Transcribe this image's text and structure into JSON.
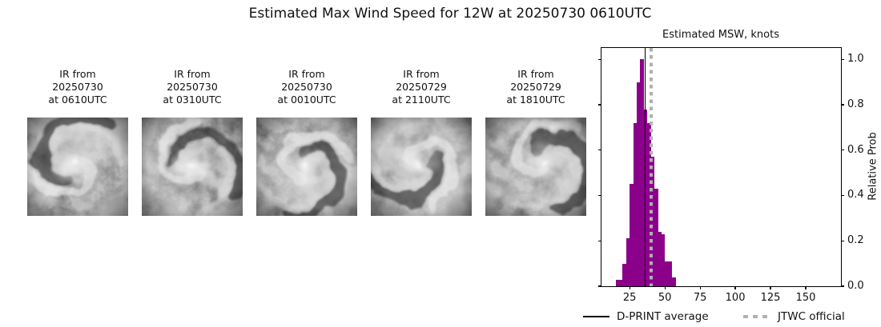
{
  "title": "Estimated Max Wind Speed for 12W at 20250730 0610UTC",
  "panels": [
    {
      "line1": "IR from",
      "line2": "20250730",
      "line3": "at 0610UTC"
    },
    {
      "line1": "IR from",
      "line2": "20250730",
      "line3": "at 0310UTC"
    },
    {
      "line1": "IR from",
      "line2": "20250730",
      "line3": "at 0010UTC"
    },
    {
      "line1": "IR from",
      "line2": "20250729",
      "line3": "at 2110UTC"
    },
    {
      "line1": "IR from",
      "line2": "20250729",
      "line3": "at 1810UTC"
    }
  ],
  "histogram": {
    "title": "Estimated MSW, knots",
    "ylabel": "Relative Prob",
    "bar_color": "#8b008b",
    "average_line_color": "#000000",
    "official_line_color": "#b0b0b0",
    "legend": [
      {
        "label": "D-PRINT average",
        "style": "solid-black-line"
      },
      {
        "label": "JTWC official",
        "style": "dotted-gray-line"
      }
    ]
  },
  "chart_data": {
    "type": "bar",
    "subtype": "histogram",
    "title": "Estimated MSW, knots",
    "xlabel": "Estimated MSW, knots",
    "ylabel": "Relative Prob",
    "bin_edges": [
      15,
      17.5,
      20,
      22.5,
      25,
      27.5,
      30,
      32.5,
      35,
      37.5,
      40,
      42.5,
      45,
      47.5,
      50,
      52.5,
      55,
      57.5
    ],
    "values": [
      0.03,
      0.03,
      0.1,
      0.21,
      0.45,
      0.72,
      0.9,
      1.0,
      0.78,
      0.72,
      0.57,
      0.43,
      0.24,
      0.23,
      0.11,
      0.11,
      0.04
    ],
    "xlim": [
      5,
      175
    ],
    "ylim": [
      0,
      1.05
    ],
    "xticks": [
      25,
      50,
      75,
      100,
      125,
      150
    ],
    "yticks": [
      0.0,
      0.2,
      0.4,
      0.6,
      0.8,
      1.0
    ],
    "grid": false,
    "bar_color": "#8b008b",
    "lines": {
      "dprint_average_kt": 36,
      "jtwc_official_kt": 40
    },
    "legend_position": "below-axis"
  }
}
